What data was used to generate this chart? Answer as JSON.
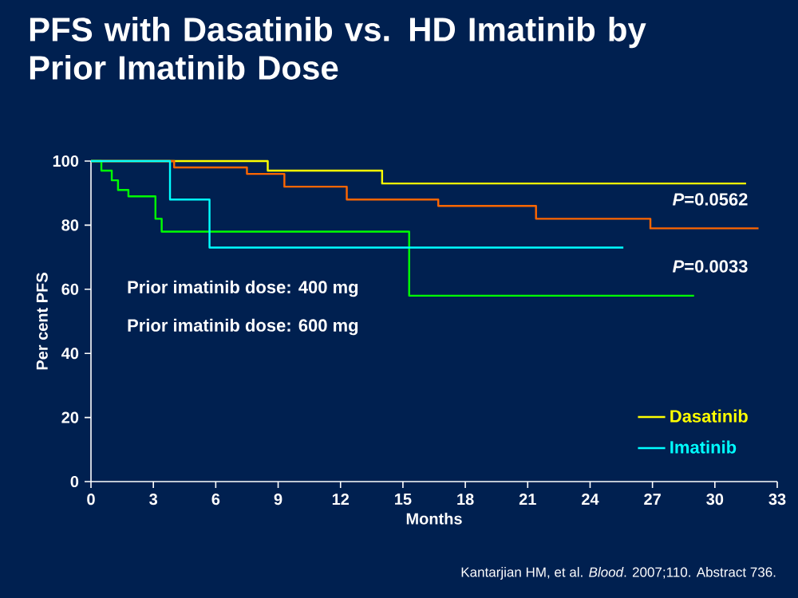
{
  "chart_data": {
    "type": "step",
    "title": "PFS with Dasatinib vs. HD Imatinib by Prior Imatinib Dose",
    "xlabel": "Months",
    "ylabel": "Per cent PFS",
    "xlim": [
      0,
      33
    ],
    "xticks": [
      0,
      3,
      6,
      9,
      12,
      15,
      18,
      21,
      24,
      27,
      30,
      33
    ],
    "ylim": [
      0,
      100
    ],
    "yticks": [
      0,
      20,
      40,
      60,
      80,
      100
    ],
    "grid": false,
    "legend": "bottom right",
    "marker": "none",
    "line_style": "solid",
    "series": [
      {
        "name": "Dasatinib",
        "color": "#ffff00",
        "x": [
          0,
          8.5,
          14,
          31.5
        ],
        "values": [
          100,
          97,
          93,
          93
        ]
      },
      {
        "color": "#ff6600",
        "x": [
          0,
          4,
          7.5,
          9.3,
          12.3,
          16.7,
          21.4,
          26.9,
          32.1
        ],
        "values": [
          100,
          98,
          96,
          92,
          88,
          86,
          82,
          79,
          79
        ]
      },
      {
        "color": "#00ff00",
        "x": [
          0,
          0.5,
          1,
          1.3,
          1.8,
          3.1,
          3.4,
          15.3,
          29
        ],
        "values": [
          100,
          97,
          94,
          91,
          89,
          82,
          78,
          58,
          58
        ]
      },
      {
        "name": "Imatinib",
        "color": "#00ffff",
        "x": [
          0,
          3.8,
          5.7,
          25.6
        ],
        "values": [
          100,
          88,
          73,
          73
        ]
      }
    ],
    "annotations": [
      "*P*=0.0562",
      "*P*=0.0033",
      "Prior imatinib dose: 400 mg",
      "Prior imatinib dose: 600 mg",
      "Kantarjian HM, et al. *Blood*. 2007;110. Abstract 736."
    ]
  }
}
